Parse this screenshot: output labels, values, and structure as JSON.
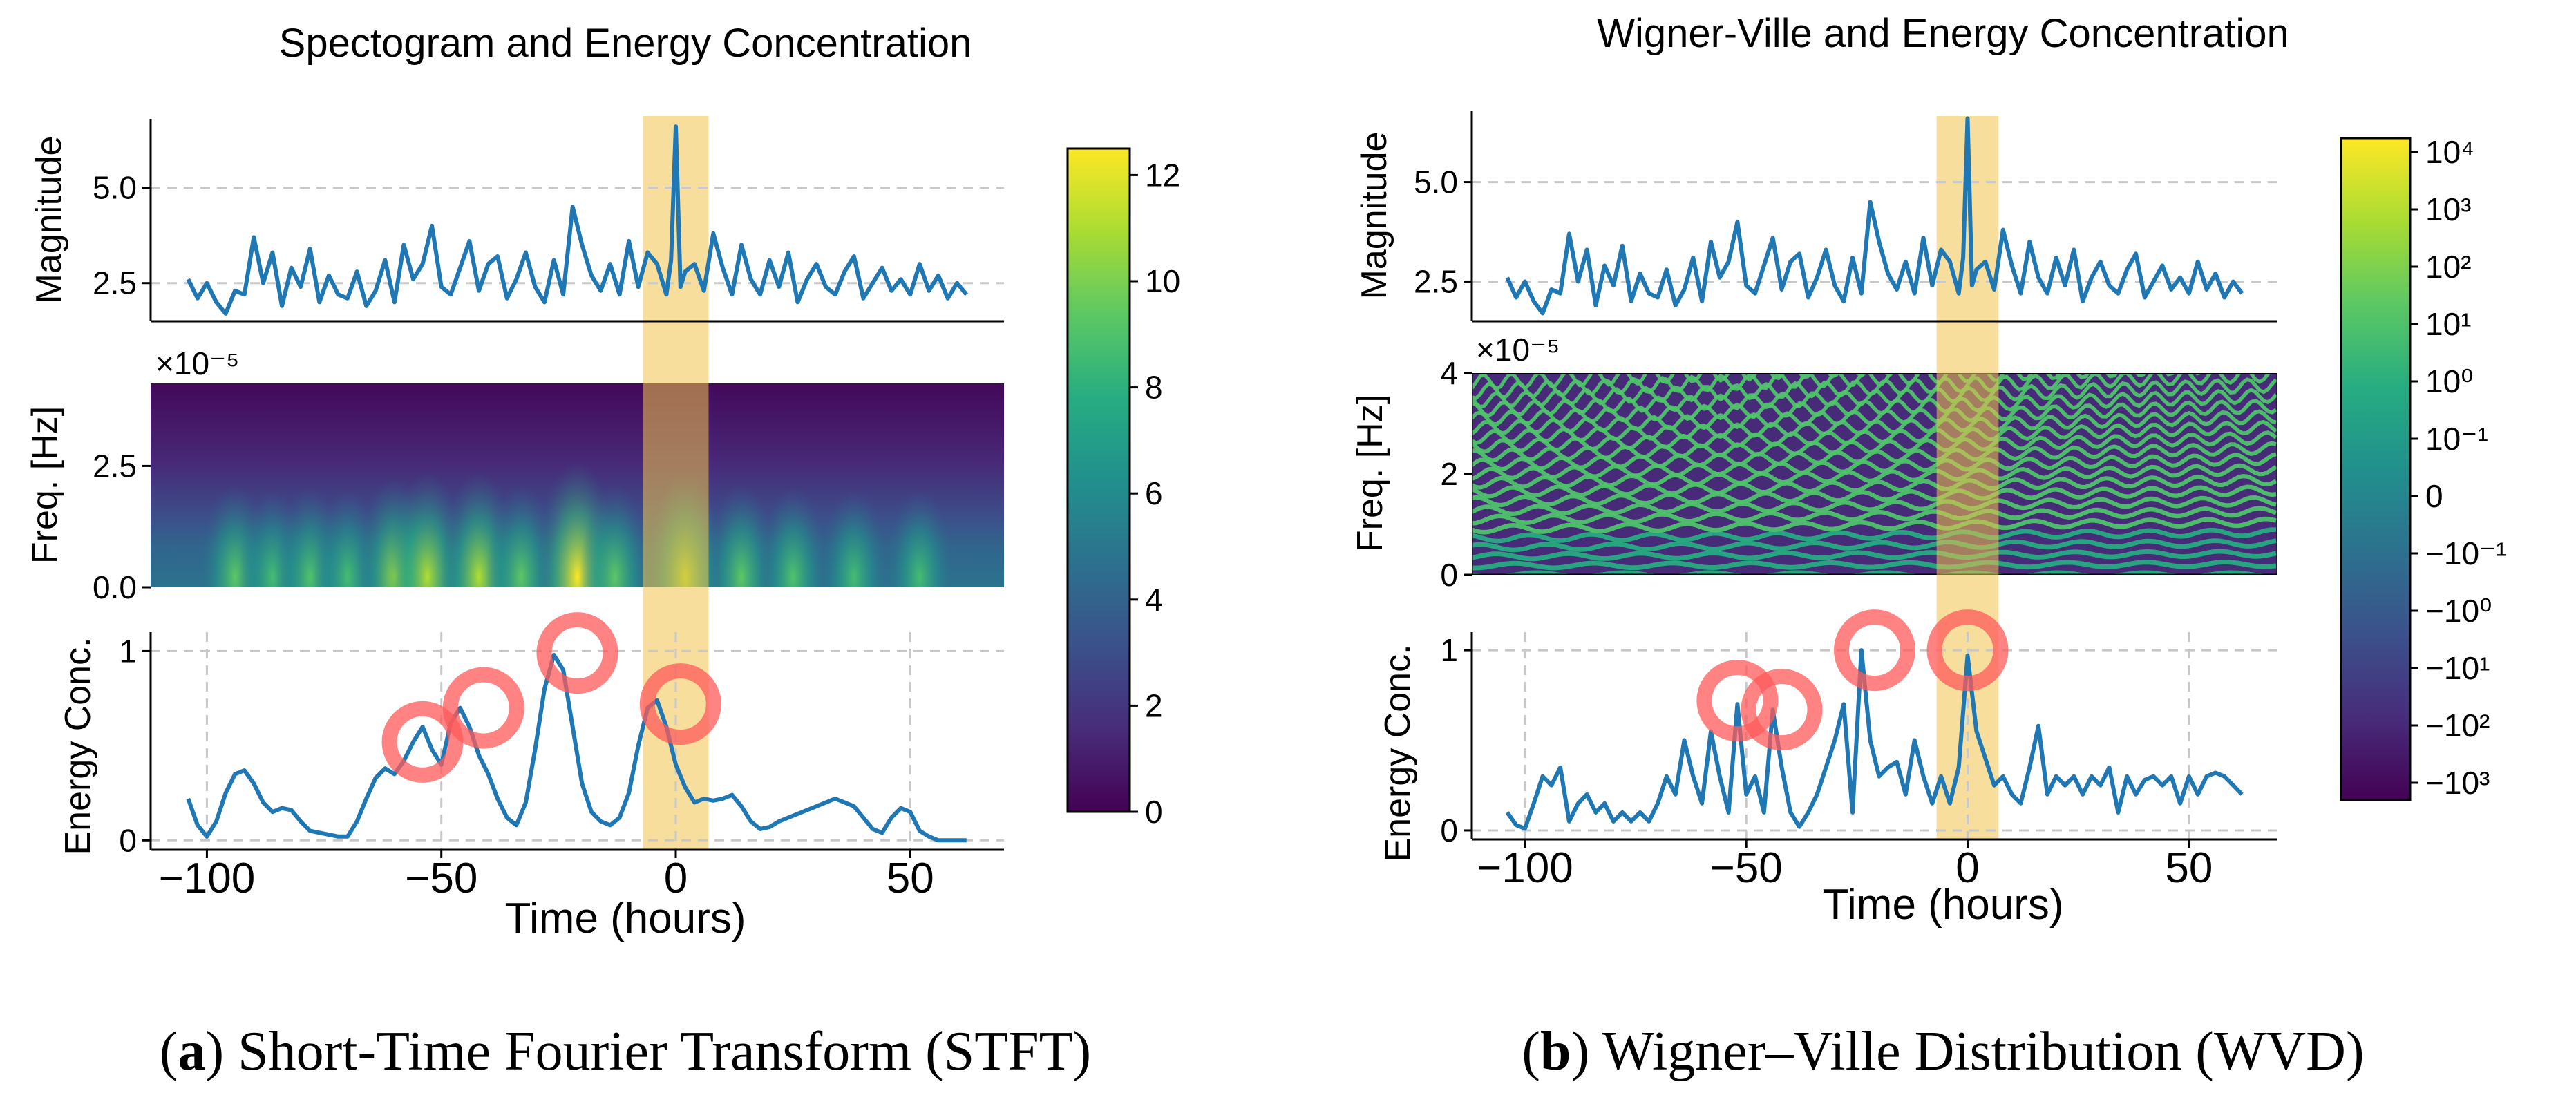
{
  "colors": {
    "line": "#1f77b4",
    "highlight": "#f0c24b",
    "circle": "#ff5a5a",
    "grid": "#c8c8c8"
  },
  "captions": {
    "a_label": "a",
    "a_text": " Short-Time Fourier Transform (STFT)",
    "b_label": "b",
    "b_text": " Wigner–Ville Distribution (WVD)"
  },
  "chart_data": [
    {
      "type": "line",
      "title": "Spectogram and Energy Concentration",
      "xlabel": "Time (hours)",
      "xlim": [
        -112,
        70
      ],
      "x_ticks": [
        -100,
        -50,
        0,
        50
      ],
      "highlight_x_range": [
        -7,
        7
      ],
      "magnitude": {
        "ylabel": "Magnitude",
        "ylim": [
          1.5,
          6.8
        ],
        "y_ticks": [
          2.5,
          5.0
        ],
        "y_tick_labels": [
          "2.5",
          "5.0"
        ],
        "x": [
          -104,
          -102,
          -100,
          -98,
          -96,
          -94,
          -92,
          -90,
          -88,
          -86,
          -84,
          -82,
          -80,
          -78,
          -76,
          -74,
          -72,
          -70,
          -68,
          -66,
          -64,
          -62,
          -60,
          -58,
          -56,
          -54,
          -52,
          -50,
          -48,
          -46,
          -44,
          -42,
          -40,
          -38,
          -36,
          -34,
          -32,
          -30,
          -28,
          -26,
          -24,
          -22,
          -20,
          -18,
          -16,
          -14,
          -12,
          -10,
          -8,
          -6,
          -4,
          -2,
          -1,
          0,
          1,
          2,
          4,
          6,
          8,
          10,
          12,
          14,
          16,
          18,
          20,
          22,
          24,
          26,
          28,
          30,
          32,
          34,
          36,
          38,
          40,
          42,
          44,
          46,
          48,
          50,
          52,
          54,
          56,
          58,
          60,
          62
        ],
        "values": [
          2.6,
          2.1,
          2.5,
          2.0,
          1.7,
          2.3,
          2.2,
          3.7,
          2.5,
          3.3,
          1.9,
          2.9,
          2.4,
          3.4,
          2.0,
          2.7,
          2.2,
          2.1,
          2.8,
          1.9,
          2.3,
          3.1,
          2.0,
          3.5,
          2.6,
          3.0,
          4.0,
          2.4,
          2.2,
          2.9,
          3.6,
          2.3,
          3.0,
          3.2,
          2.1,
          2.6,
          3.3,
          2.4,
          2.0,
          3.1,
          2.2,
          4.5,
          3.5,
          2.7,
          2.3,
          3.0,
          2.2,
          3.6,
          2.4,
          3.3,
          3.0,
          2.2,
          3.1,
          6.6,
          2.4,
          2.8,
          3.0,
          2.3,
          3.8,
          2.9,
          2.2,
          3.5,
          2.6,
          2.2,
          3.1,
          2.4,
          3.3,
          2.0,
          2.6,
          3.0,
          2.4,
          2.2,
          2.8,
          3.2,
          2.1,
          2.5,
          2.9,
          2.3,
          2.6,
          2.2,
          3.0,
          2.3,
          2.7,
          2.1,
          2.5,
          2.2
        ]
      },
      "spectrogram": {
        "ylabel": "Freq. [Hz]",
        "ylim": [
          0,
          4.2
        ],
        "y_ticks": [
          0,
          2.5
        ],
        "y_tick_labels": [
          "0.0",
          "2.5"
        ],
        "offset_text": "×10⁻⁵",
        "peak_times": [
          -94,
          -86,
          -78,
          -70,
          -60,
          -53,
          -42,
          -33,
          -21,
          -13,
          2,
          14,
          25,
          38,
          52
        ],
        "peak_strengths": [
          0.55,
          0.45,
          0.5,
          0.45,
          0.7,
          0.8,
          0.8,
          0.55,
          1.0,
          0.55,
          0.8,
          0.55,
          0.5,
          0.45,
          0.45
        ]
      },
      "colorbar": {
        "range": [
          0,
          12.5
        ],
        "ticks": [
          0,
          2,
          4,
          6,
          8,
          10,
          12
        ],
        "tick_labels": [
          "0",
          "2",
          "4",
          "6",
          "8",
          "10",
          "12"
        ]
      },
      "energy": {
        "ylabel": "Energy Conc.",
        "ylim": [
          -0.05,
          1.1
        ],
        "y_ticks": [
          0,
          1
        ],
        "y_tick_labels": [
          "0",
          "1"
        ],
        "x": [
          -104,
          -102,
          -100,
          -98,
          -96,
          -94,
          -92,
          -90,
          -88,
          -86,
          -84,
          -82,
          -80,
          -78,
          -76,
          -74,
          -72,
          -70,
          -68,
          -66,
          -64,
          -62,
          -60,
          -58,
          -56,
          -54,
          -52,
          -50,
          -48,
          -46,
          -44,
          -42,
          -40,
          -38,
          -36,
          -34,
          -32,
          -30,
          -28,
          -26,
          -24,
          -22,
          -20,
          -18,
          -16,
          -14,
          -12,
          -10,
          -8,
          -6,
          -4,
          -2,
          0,
          2,
          4,
          6,
          8,
          10,
          12,
          14,
          16,
          18,
          20,
          22,
          24,
          26,
          28,
          30,
          32,
          34,
          36,
          38,
          40,
          42,
          44,
          46,
          48,
          50,
          52,
          54,
          56,
          58,
          60,
          62
        ],
        "values": [
          0.22,
          0.08,
          0.02,
          0.1,
          0.25,
          0.35,
          0.37,
          0.3,
          0.2,
          0.15,
          0.17,
          0.16,
          0.1,
          0.05,
          0.04,
          0.03,
          0.02,
          0.02,
          0.1,
          0.22,
          0.33,
          0.38,
          0.35,
          0.42,
          0.52,
          0.6,
          0.48,
          0.4,
          0.62,
          0.7,
          0.6,
          0.45,
          0.35,
          0.22,
          0.12,
          0.08,
          0.2,
          0.48,
          0.8,
          0.98,
          0.9,
          0.6,
          0.3,
          0.15,
          0.1,
          0.08,
          0.12,
          0.25,
          0.5,
          0.7,
          0.74,
          0.6,
          0.4,
          0.28,
          0.2,
          0.22,
          0.21,
          0.22,
          0.24,
          0.18,
          0.1,
          0.06,
          0.07,
          0.1,
          0.12,
          0.14,
          0.16,
          0.18,
          0.2,
          0.22,
          0.2,
          0.18,
          0.12,
          0.06,
          0.04,
          0.12,
          0.17,
          0.15,
          0.05,
          0.02,
          0.0,
          0.0,
          0.0,
          0.0
        ],
        "circle_points": [
          [
            -54,
            0.52
          ],
          [
            -41,
            0.7
          ],
          [
            -21,
            0.99
          ],
          [
            1,
            0.72
          ]
        ]
      }
    },
    {
      "type": "line",
      "title": "Wigner-Ville and Energy Concentration",
      "xlabel": "Time (hours)",
      "xlim": [
        -112,
        70
      ],
      "x_ticks": [
        -100,
        -50,
        0,
        50
      ],
      "highlight_x_range": [
        -7,
        7
      ],
      "magnitude": {
        "ylabel": "Magnitude",
        "ylim": [
          1.5,
          6.8
        ],
        "y_ticks": [
          2.5,
          5.0
        ],
        "y_tick_labels": [
          "2.5",
          "5.0"
        ],
        "x": [
          -104,
          -102,
          -100,
          -98,
          -96,
          -94,
          -92,
          -90,
          -88,
          -86,
          -84,
          -82,
          -80,
          -78,
          -76,
          -74,
          -72,
          -70,
          -68,
          -66,
          -64,
          -62,
          -60,
          -58,
          -56,
          -54,
          -52,
          -50,
          -48,
          -46,
          -44,
          -42,
          -40,
          -38,
          -36,
          -34,
          -32,
          -30,
          -28,
          -26,
          -24,
          -22,
          -20,
          -18,
          -16,
          -14,
          -12,
          -10,
          -8,
          -6,
          -4,
          -2,
          -1,
          0,
          1,
          2,
          4,
          6,
          8,
          10,
          12,
          14,
          16,
          18,
          20,
          22,
          24,
          26,
          28,
          30,
          32,
          34,
          36,
          38,
          40,
          42,
          44,
          46,
          48,
          50,
          52,
          54,
          56,
          58,
          60,
          62
        ],
        "values": [
          2.6,
          2.1,
          2.5,
          2.0,
          1.7,
          2.3,
          2.2,
          3.7,
          2.5,
          3.3,
          1.9,
          2.9,
          2.4,
          3.4,
          2.0,
          2.7,
          2.2,
          2.1,
          2.8,
          1.9,
          2.3,
          3.1,
          2.0,
          3.5,
          2.6,
          3.0,
          4.0,
          2.4,
          2.2,
          2.9,
          3.6,
          2.3,
          3.0,
          3.2,
          2.1,
          2.6,
          3.3,
          2.4,
          2.0,
          3.1,
          2.2,
          4.5,
          3.5,
          2.7,
          2.3,
          3.0,
          2.2,
          3.6,
          2.4,
          3.3,
          3.0,
          2.2,
          3.1,
          6.6,
          2.4,
          2.8,
          3.0,
          2.3,
          3.8,
          2.9,
          2.2,
          3.5,
          2.6,
          2.2,
          3.1,
          2.4,
          3.3,
          2.0,
          2.6,
          3.0,
          2.4,
          2.2,
          2.8,
          3.2,
          2.1,
          2.5,
          2.9,
          2.3,
          2.6,
          2.2,
          3.0,
          2.3,
          2.7,
          2.1,
          2.5,
          2.2
        ]
      },
      "wvd": {
        "ylabel": "Freq. [Hz]",
        "ylim": [
          0,
          4
        ],
        "y_ticks": [
          0,
          2,
          4
        ],
        "y_tick_labels": [
          "0",
          "2",
          "4"
        ],
        "offset_text": "×10⁻⁵"
      },
      "colorbar": {
        "scale": "symlog",
        "tick_labels": [
          "10⁴",
          "10³",
          "10²",
          "10¹",
          "10⁰",
          "10⁻¹",
          "0",
          "−10⁻¹",
          "−10⁰",
          "−10¹",
          "−10²",
          "−10³"
        ]
      },
      "energy": {
        "ylabel": "Energy Conc.",
        "ylim": [
          -0.05,
          1.1
        ],
        "y_ticks": [
          0,
          1
        ],
        "y_tick_labels": [
          "0",
          "1"
        ],
        "x": [
          -104,
          -102,
          -100,
          -98,
          -96,
          -94,
          -92,
          -90,
          -88,
          -86,
          -84,
          -82,
          -80,
          -78,
          -76,
          -74,
          -72,
          -70,
          -68,
          -66,
          -64,
          -62,
          -60,
          -58,
          -56,
          -54,
          -52,
          -50,
          -48,
          -46,
          -44,
          -42,
          -40,
          -38,
          -36,
          -34,
          -32,
          -30,
          -28,
          -26,
          -24,
          -22,
          -20,
          -18,
          -16,
          -14,
          -12,
          -10,
          -8,
          -6,
          -4,
          -2,
          0,
          2,
          4,
          6,
          8,
          10,
          12,
          14,
          16,
          18,
          20,
          22,
          24,
          26,
          28,
          30,
          32,
          34,
          36,
          38,
          40,
          42,
          44,
          46,
          48,
          50,
          52,
          54,
          56,
          58,
          60,
          62
        ],
        "values": [
          0.1,
          0.03,
          0.01,
          0.15,
          0.3,
          0.25,
          0.35,
          0.05,
          0.15,
          0.2,
          0.1,
          0.15,
          0.05,
          0.1,
          0.05,
          0.1,
          0.05,
          0.15,
          0.3,
          0.2,
          0.5,
          0.3,
          0.15,
          0.55,
          0.3,
          0.1,
          0.7,
          0.2,
          0.3,
          0.1,
          0.67,
          0.35,
          0.1,
          0.02,
          0.1,
          0.2,
          0.35,
          0.5,
          0.7,
          0.1,
          1.0,
          0.5,
          0.3,
          0.35,
          0.38,
          0.2,
          0.5,
          0.3,
          0.15,
          0.3,
          0.15,
          0.35,
          0.97,
          0.55,
          0.4,
          0.25,
          0.3,
          0.2,
          0.15,
          0.35,
          0.58,
          0.2,
          0.3,
          0.25,
          0.3,
          0.2,
          0.3,
          0.25,
          0.35,
          0.1,
          0.3,
          0.2,
          0.28,
          0.3,
          0.25,
          0.3,
          0.15,
          0.3,
          0.2,
          0.3,
          0.32,
          0.3,
          0.25,
          0.2
        ],
        "circle_points": [
          [
            -52,
            0.72
          ],
          [
            -42,
            0.67
          ],
          [
            -21,
            1.0
          ],
          [
            0,
            1.0
          ]
        ]
      }
    }
  ]
}
